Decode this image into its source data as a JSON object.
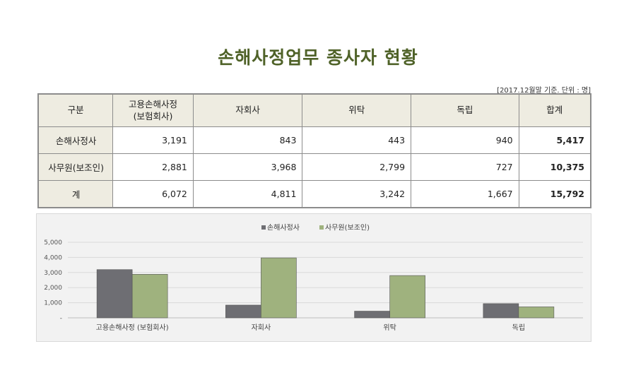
{
  "title": "손해사정업무 종사자 현황",
  "unit_note": "[2017.12월말 기준. 단위 : 명]",
  "table": {
    "headers": [
      "구분",
      "고용손해사정\n(보험회사)",
      "자회사",
      "위탁",
      "독립",
      "합계"
    ],
    "rows": [
      {
        "label": "손해사정사",
        "cells": [
          "3,191",
          "843",
          "443",
          "940",
          "5,417"
        ]
      },
      {
        "label": "사무원(보조인)",
        "cells": [
          "2,881",
          "3,968",
          "2,799",
          "727",
          "10,375"
        ]
      },
      {
        "label": "계",
        "cells": [
          "6,072",
          "4,811",
          "3,242",
          "1,667",
          "15,792"
        ]
      }
    ]
  },
  "chart_data": {
    "type": "bar",
    "categories": [
      "고용손해사정 (보험회사)",
      "자회사",
      "위탁",
      "독립"
    ],
    "series": [
      {
        "name": "손해사정사",
        "values": [
          3191,
          843,
          443,
          940
        ],
        "color": "#6e6e73"
      },
      {
        "name": "사무원(보조인)",
        "values": [
          2881,
          3968,
          2799,
          727
        ],
        "color": "#9fb27e"
      }
    ],
    "yticks": [
      "5,000",
      "4,000",
      "3,000",
      "2,000",
      "1,000",
      "-"
    ],
    "ylim": [
      0,
      5000
    ],
    "grid": true,
    "legend": "top"
  },
  "colors": {
    "title": "#4f6228",
    "header_bg": "#eeece1",
    "chart_bg": "#f2f2f2"
  }
}
